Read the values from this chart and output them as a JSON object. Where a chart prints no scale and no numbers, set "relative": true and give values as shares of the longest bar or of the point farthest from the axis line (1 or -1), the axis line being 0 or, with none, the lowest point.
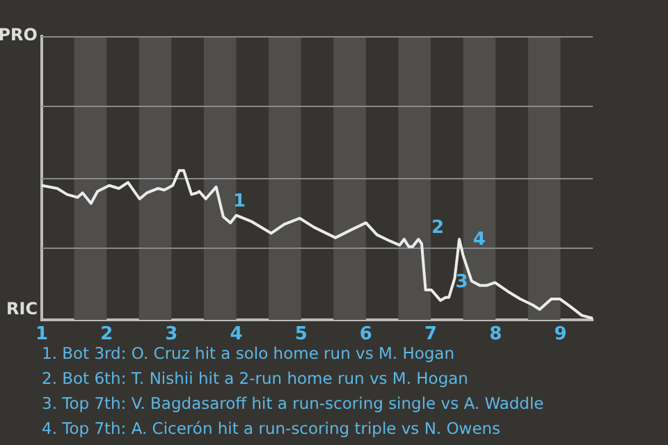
{
  "chart_data": {
    "type": "line",
    "relative": true,
    "legend": false,
    "marker": "none",
    "line_style": "solid",
    "xlim": [
      1,
      9.5
    ],
    "xticks": [
      1,
      2,
      3,
      4,
      5,
      6,
      7,
      8,
      9
    ],
    "bands": [
      {
        "axis": "x",
        "from": 1.5,
        "to": 2,
        "color": "#4f4e4c"
      },
      {
        "axis": "x",
        "from": 2.5,
        "to": 3,
        "color": "#4f4e4c"
      },
      {
        "axis": "x",
        "from": 3.5,
        "to": 4,
        "color": "#4f4e4c"
      },
      {
        "axis": "x",
        "from": 4.5,
        "to": 5,
        "color": "#4f4e4c"
      },
      {
        "axis": "x",
        "from": 5.5,
        "to": 6,
        "color": "#4f4e4c"
      },
      {
        "axis": "x",
        "from": 6.5,
        "to": 7,
        "color": "#4f4e4c"
      },
      {
        "axis": "x",
        "from": 7.5,
        "to": 8,
        "color": "#4f4e4c"
      },
      {
        "axis": "x",
        "from": 8.5,
        "to": 9,
        "color": "#4f4e4c"
      }
    ],
    "series": [
      {
        "color": "#ebebeb",
        "x": [
          1,
          1.24,
          1.39,
          1.55,
          1.63,
          1.76,
          1.86,
          2.04,
          2.19,
          2.33,
          2.51,
          2.62,
          2.79,
          2.89,
          3.02,
          3.12,
          3.19,
          3.31,
          3.39,
          3.43,
          3.53,
          3.69,
          3.8,
          3.91,
          4,
          4.23,
          4.54,
          4.74,
          4.98,
          5.2,
          5.53,
          5.76,
          6,
          6.17,
          6.36,
          6.52,
          6.59,
          6.66,
          6.72,
          6.81,
          6.86,
          6.92,
          7.01,
          7.15,
          7.23,
          7.28,
          7.37,
          7.44,
          7.5,
          7.63,
          7.76,
          7.86,
          7.99,
          8.19,
          8.38,
          8.57,
          8.68,
          8.86,
          8.99,
          9.15,
          9.33,
          9.5
        ],
        "values": [
          0.9,
          0.88,
          0.84,
          0.82,
          0.85,
          0.78,
          0.86,
          0.9,
          0.88,
          0.92,
          0.81,
          0.85,
          0.88,
          0.87,
          0.9,
          1,
          1,
          0.84,
          0.85,
          0.86,
          0.81,
          0.89,
          0.69,
          0.65,
          0.7,
          0.66,
          0.58,
          0.64,
          0.68,
          0.62,
          0.55,
          0.6,
          0.65,
          0.57,
          0.53,
          0.5,
          0.54,
          0.49,
          0.49,
          0.54,
          0.51,
          0.2,
          0.2,
          0.13,
          0.15,
          0.15,
          0.28,
          0.54,
          0.43,
          0.26,
          0.23,
          0.23,
          0.25,
          0.19,
          0.14,
          0.1,
          0.07,
          0.14,
          0.14,
          0.09,
          0.03,
          0.01
        ]
      }
    ],
    "ref_lines": [
      {
        "axis": "y",
        "value": 0.48,
        "color": "#8a8a8a"
      },
      {
        "axis": "y",
        "value": 0.95,
        "color": "#8a8a8a"
      },
      {
        "axis": "y",
        "value": 1.43,
        "color": "#8a8a8a"
      },
      {
        "axis": "y",
        "value": 1.9,
        "color": "#8a8a8a"
      }
    ],
    "annotations": [
      "PRO",
      "RIC",
      {
        "text": "1",
        "x": 3.8,
        "y": 0.69
      },
      {
        "text": "2",
        "x": 6.86,
        "y": 0.51
      },
      {
        "text": "3",
        "x": 7.23,
        "y": 0.15
      },
      {
        "text": "4",
        "x": 7.5,
        "y": 0.43
      },
      "1. Bot 3rd: O. Cruz hit a solo home run vs M. Hogan",
      "2. Bot 6th: T. Nishii hit a 2-run home run vs M. Hogan",
      "3. Top 7th: V. Bagdasaroff hit a run-scoring single vs A. Waddle",
      "4. Top 7th: A. Cicerón hit a run-scoring triple vs N. Owens"
    ]
  }
}
